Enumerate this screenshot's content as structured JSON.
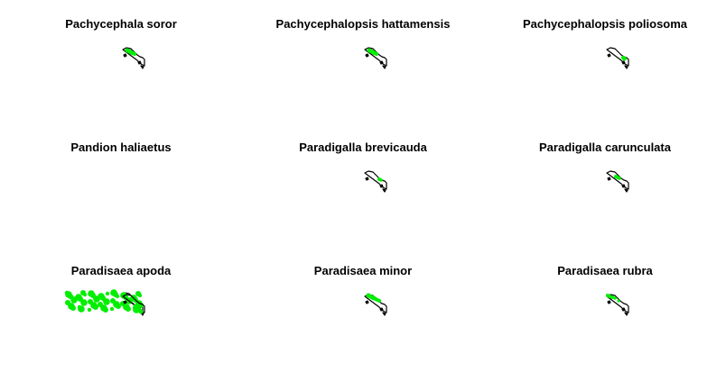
{
  "colors": {
    "background": "#ffffff",
    "title_text": "#000000",
    "map_outline": "#000000",
    "occurrence": "#00ee00"
  },
  "icons": {
    "map": "new-guinea-map-icon",
    "occurrence": "occurrence-dot"
  },
  "panels": [
    {
      "title": "Pachycephala soror",
      "range": "highland-west"
    },
    {
      "title": "Pachycephalopsis hattamensis",
      "range": "highland-west"
    },
    {
      "title": "Pachycephalopsis poliosoma",
      "range": "east"
    },
    {
      "title": "Pandion haliaetus",
      "range": "widespread"
    },
    {
      "title": "Paradigalla brevicauda",
      "range": "central"
    },
    {
      "title": "Paradigalla carunculata",
      "range": "vogelkop"
    },
    {
      "title": "Paradisaea apoda",
      "range": "south"
    },
    {
      "title": "Paradisaea minor",
      "range": "north-west"
    },
    {
      "title": "Paradisaea rubra",
      "range": "west-islands"
    }
  ]
}
